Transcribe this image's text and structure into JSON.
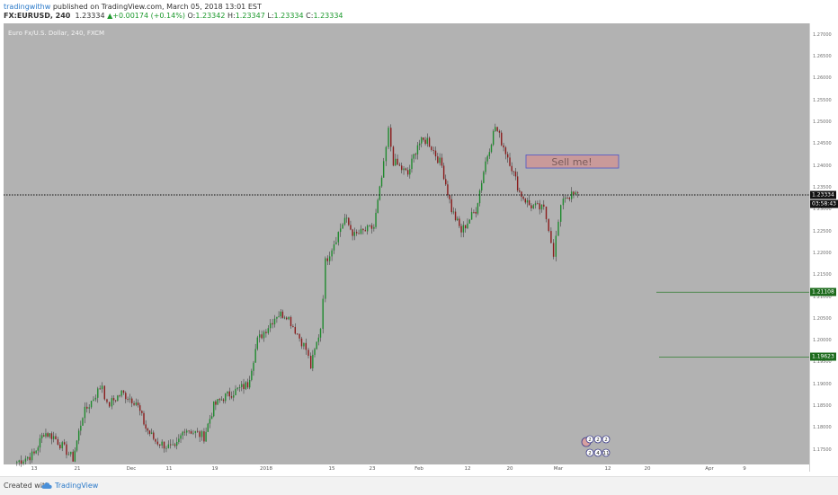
{
  "header": {
    "author": "tradingwithw",
    "published_text": "published on TradingView.com, March 05, 2018 13:01 EST",
    "symbol": "FX:EURUSD, 240",
    "last": "1.23334",
    "change": "+0.00174 (+0.14%)",
    "o_label": "O:",
    "o_value": "1.23342",
    "h_label": "H:",
    "h_value": "1.23347",
    "l_label": "L:",
    "l_value": "1.23334",
    "c_label": "C:",
    "c_value": "1.23334"
  },
  "chart_title": "Euro Fx/U.S. Dollar, 240, FXCM",
  "footer": {
    "created_with": "Created with",
    "brand": "TradingView"
  },
  "price_tags": {
    "current": "1.23334",
    "timer": "03:58:43",
    "level_1": "1.21108",
    "level_2": "1.19623"
  },
  "annotations": {
    "sell_box_text": "Sell me!"
  },
  "badges": {
    "top": [
      "2",
      "2",
      "2"
    ],
    "bottom": [
      "2",
      "4",
      "11"
    ]
  },
  "colors": {
    "plot_bg": "#b2b2b2",
    "bull": "#1f8a2e",
    "bear": "#8a1a1a",
    "level_line": "#2e7d2e",
    "sell_box": "#c99a9a",
    "sell_border": "#4c55c8"
  },
  "chart_data": {
    "type": "candlestick",
    "title": "Euro Fx/U.S. Dollar, 240, FXCM",
    "symbol": "FX:EURUSD",
    "timeframe": "240",
    "x_ticks": [
      "13",
      "21",
      "Dec",
      "11",
      "19",
      "2018",
      "15",
      "23",
      "Feb",
      "12",
      "20",
      "Mar",
      "12",
      "20",
      "Apr",
      "9"
    ],
    "y_ticks": [
      "1.27000",
      "1.26500",
      "1.26000",
      "1.25500",
      "1.25000",
      "1.24500",
      "1.24000",
      "1.23500",
      "1.23000",
      "1.22500",
      "1.22000",
      "1.21500",
      "1.21000",
      "1.20500",
      "1.20000",
      "1.19500",
      "1.19000",
      "1.18500",
      "1.18000",
      "1.17500"
    ],
    "ylim": [
      1.1735,
      1.272
    ],
    "price_path": [
      {
        "date": "2017-11-09",
        "close": 1.172
      },
      {
        "date": "2017-11-13",
        "close": 1.174
      },
      {
        "date": "2017-11-15",
        "close": 1.179
      },
      {
        "date": "2017-11-17",
        "close": 1.178
      },
      {
        "date": "2017-11-21",
        "close": 1.173
      },
      {
        "date": "2017-11-23",
        "close": 1.183
      },
      {
        "date": "2017-11-27",
        "close": 1.19
      },
      {
        "date": "2017-11-28",
        "close": 1.185
      },
      {
        "date": "2017-11-29",
        "close": 1.186
      },
      {
        "date": "2017-12-01",
        "close": 1.188
      },
      {
        "date": "2017-12-04",
        "close": 1.186
      },
      {
        "date": "2017-12-06",
        "close": 1.18
      },
      {
        "date": "2017-12-08",
        "close": 1.177
      },
      {
        "date": "2017-12-12",
        "close": 1.175
      },
      {
        "date": "2017-12-14",
        "close": 1.18
      },
      {
        "date": "2017-12-18",
        "close": 1.178
      },
      {
        "date": "2017-12-20",
        "close": 1.185
      },
      {
        "date": "2017-12-22",
        "close": 1.187
      },
      {
        "date": "2017-12-27",
        "close": 1.19
      },
      {
        "date": "2017-12-29",
        "close": 1.2
      },
      {
        "date": "2018-01-02",
        "close": 1.206
      },
      {
        "date": "2018-01-04",
        "close": 1.206
      },
      {
        "date": "2018-01-08",
        "close": 1.198
      },
      {
        "date": "2018-01-09",
        "close": 1.194
      },
      {
        "date": "2018-01-11",
        "close": 1.203
      },
      {
        "date": "2018-01-12",
        "close": 1.218
      },
      {
        "date": "2018-01-16",
        "close": 1.228
      },
      {
        "date": "2018-01-18",
        "close": 1.224
      },
      {
        "date": "2018-01-22",
        "close": 1.226
      },
      {
        "date": "2018-01-24",
        "close": 1.24
      },
      {
        "date": "2018-01-25",
        "close": 1.248
      },
      {
        "date": "2018-01-26",
        "close": 1.241
      },
      {
        "date": "2018-01-29",
        "close": 1.238
      },
      {
        "date": "2018-01-31",
        "close": 1.245
      },
      {
        "date": "2018-02-02",
        "close": 1.246
      },
      {
        "date": "2018-02-05",
        "close": 1.24
      },
      {
        "date": "2018-02-07",
        "close": 1.23
      },
      {
        "date": "2018-02-09",
        "close": 1.225
      },
      {
        "date": "2018-02-12",
        "close": 1.23
      },
      {
        "date": "2018-02-14",
        "close": 1.241
      },
      {
        "date": "2018-02-16",
        "close": 1.249
      },
      {
        "date": "2018-02-19",
        "close": 1.241
      },
      {
        "date": "2018-02-21",
        "close": 1.234
      },
      {
        "date": "2018-02-23",
        "close": 1.231
      },
      {
        "date": "2018-02-26",
        "close": 1.23
      },
      {
        "date": "2018-02-27",
        "close": 1.226
      },
      {
        "date": "2018-02-28",
        "close": 1.22
      },
      {
        "date": "2018-03-01",
        "close": 1.227
      },
      {
        "date": "2018-03-02",
        "close": 1.233
      },
      {
        "date": "2018-03-05",
        "close": 1.2333
      }
    ],
    "current_price": 1.23334,
    "horizontal_levels": [
      1.21108,
      1.19623
    ],
    "annotation": {
      "text": "Sell me!",
      "price_from": 1.2395,
      "price_to": 1.2425
    }
  }
}
